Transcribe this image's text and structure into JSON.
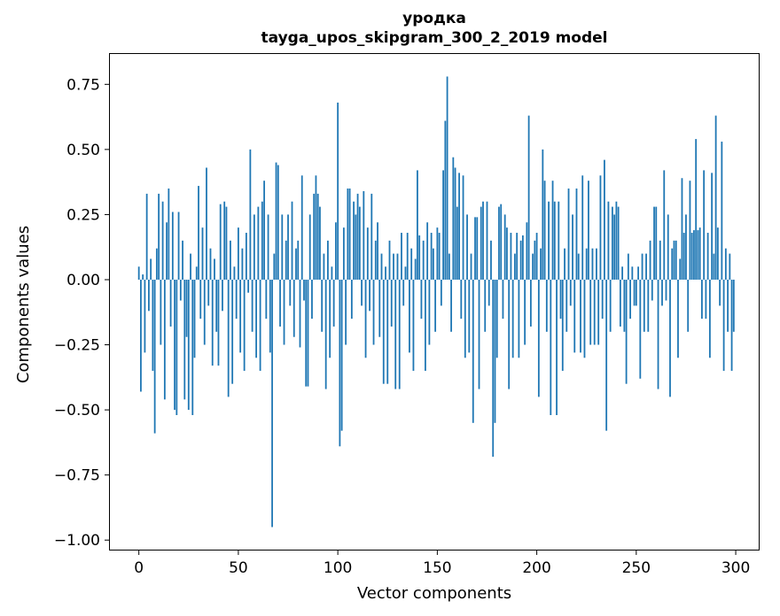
{
  "figure": {
    "title_line1": "уродка",
    "title_line2": "tayga_upos_skipgram_300_2_2019 model",
    "xlabel": "Vector components",
    "ylabel": "Components values"
  },
  "chart_data": {
    "type": "bar",
    "title": "уродка — tayga_upos_skipgram_300_2_2019 model",
    "xlabel": "Vector components",
    "ylabel": "Components values",
    "bar_color": "#1f77b4",
    "axis_color": "#000000",
    "xlim": [
      -15,
      312
    ],
    "ylim": [
      -1.04,
      0.87
    ],
    "xticks": [
      0,
      50,
      100,
      150,
      200,
      250,
      300
    ],
    "yticks": [
      -1.0,
      -0.75,
      -0.5,
      -0.25,
      0.0,
      0.25,
      0.5,
      0.75
    ],
    "legend": null,
    "grid": false,
    "values": [
      0.05,
      -0.43,
      0.02,
      -0.28,
      0.33,
      -0.12,
      0.08,
      -0.35,
      -0.59,
      0.12,
      0.33,
      -0.25,
      0.3,
      -0.46,
      0.22,
      0.35,
      -0.18,
      0.26,
      -0.5,
      -0.52,
      0.26,
      -0.08,
      0.15,
      -0.46,
      -0.22,
      -0.5,
      0.1,
      -0.52,
      -0.3,
      0.05,
      0.36,
      -0.15,
      0.2,
      -0.25,
      0.43,
      -0.1,
      0.12,
      -0.33,
      0.08,
      -0.2,
      -0.33,
      0.29,
      -0.12,
      0.3,
      0.28,
      -0.45,
      0.15,
      -0.4,
      0.05,
      -0.15,
      0.2,
      -0.28,
      0.12,
      -0.35,
      0.18,
      -0.05,
      0.5,
      -0.2,
      0.25,
      -0.3,
      0.28,
      -0.35,
      0.3,
      0.38,
      -0.15,
      0.25,
      -0.28,
      -0.95,
      0.1,
      0.45,
      0.44,
      -0.18,
      0.25,
      -0.25,
      0.15,
      0.25,
      -0.1,
      0.3,
      -0.22,
      0.12,
      0.15,
      -0.26,
      0.4,
      -0.08,
      -0.41,
      -0.41,
      0.25,
      -0.15,
      0.33,
      0.4,
      0.33,
      0.28,
      -0.2,
      0.1,
      -0.42,
      0.15,
      -0.3,
      0.05,
      -0.18,
      0.22,
      0.68,
      -0.64,
      -0.58,
      0.2,
      -0.25,
      0.35,
      0.35,
      -0.15,
      0.3,
      0.25,
      0.33,
      0.28,
      -0.1,
      0.34,
      -0.3,
      0.2,
      -0.12,
      0.33,
      -0.25,
      0.15,
      0.22,
      -0.22,
      0.1,
      -0.4,
      0.05,
      -0.4,
      0.15,
      -0.18,
      0.1,
      -0.42,
      0.1,
      -0.42,
      0.18,
      -0.1,
      0.05,
      0.18,
      -0.28,
      0.12,
      -0.35,
      0.08,
      0.42,
      0.17,
      -0.15,
      0.15,
      -0.35,
      0.22,
      -0.25,
      0.18,
      0.12,
      -0.2,
      0.2,
      0.18,
      -0.1,
      0.42,
      0.61,
      0.78,
      0.1,
      -0.2,
      0.47,
      0.43,
      0.28,
      0.41,
      -0.15,
      0.4,
      -0.3,
      0.25,
      -0.28,
      0.1,
      -0.55,
      0.24,
      0.24,
      -0.42,
      0.28,
      0.3,
      -0.2,
      0.3,
      -0.1,
      0.15,
      -0.68,
      -0.55,
      -0.3,
      0.28,
      0.29,
      -0.15,
      0.25,
      0.2,
      -0.42,
      0.18,
      -0.3,
      0.1,
      0.18,
      -0.3,
      0.15,
      0.17,
      -0.25,
      0.22,
      0.63,
      -0.18,
      0.1,
      0.15,
      0.18,
      -0.45,
      0.12,
      0.5,
      0.38,
      -0.2,
      0.3,
      -0.52,
      0.38,
      0.3,
      -0.52,
      0.3,
      -0.15,
      -0.35,
      0.12,
      -0.2,
      0.35,
      -0.1,
      0.25,
      -0.28,
      0.35,
      0.1,
      -0.28,
      0.4,
      -0.3,
      0.12,
      0.38,
      -0.25,
      0.12,
      -0.25,
      0.12,
      -0.25,
      0.4,
      -0.15,
      0.46,
      -0.58,
      0.3,
      -0.2,
      0.28,
      0.25,
      0.3,
      0.28,
      -0.18,
      0.05,
      -0.2,
      -0.4,
      0.1,
      -0.15,
      0.05,
      -0.1,
      -0.1,
      0.05,
      -0.38,
      0.1,
      -0.2,
      0.1,
      -0.2,
      0.15,
      -0.08,
      0.28,
      0.28,
      -0.42,
      0.15,
      -0.1,
      0.42,
      -0.08,
      0.25,
      -0.45,
      0.12,
      0.15,
      0.15,
      -0.3,
      0.08,
      0.39,
      0.18,
      0.25,
      -0.2,
      0.38,
      0.18,
      0.19,
      0.54,
      0.19,
      0.2,
      -0.15,
      0.42,
      -0.15,
      0.18,
      -0.3,
      0.41,
      0.1,
      0.63,
      0.2,
      -0.1,
      0.53,
      -0.35,
      0.12,
      -0.2,
      0.1,
      -0.35,
      -0.2
    ]
  }
}
